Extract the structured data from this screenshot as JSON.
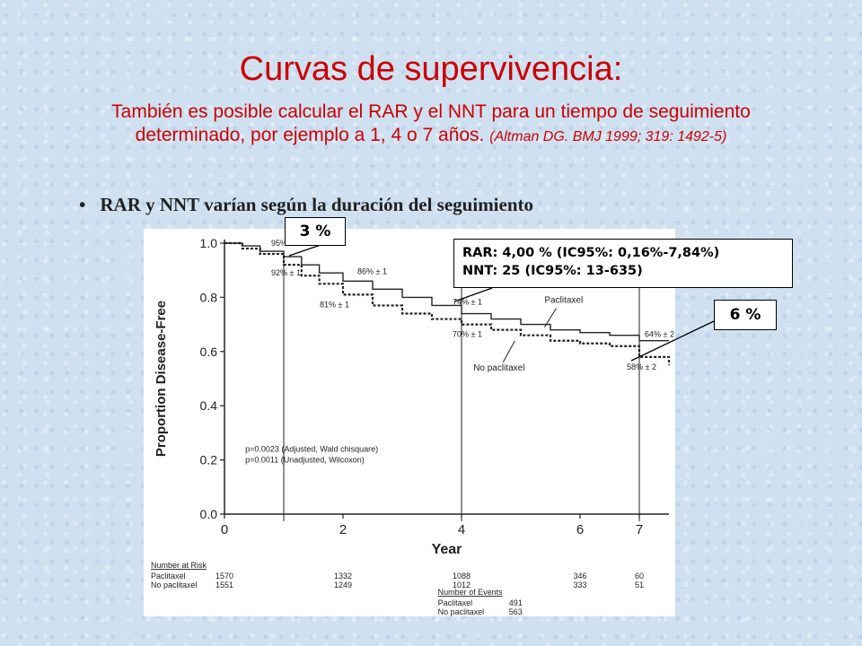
{
  "slide": {
    "title": "Curvas de supervivencia:",
    "subtitle": "También es posible calcular el RAR y el NNT para un tiempo de seguimiento determinado, por ejemplo a 1, 4 o 7 años.",
    "citation": "(Altman DG. BMJ 1999; 319: 1492-5)",
    "bullet": "RAR y NNT varían según la duración del seguimiento"
  },
  "callouts": {
    "three": "3 %",
    "six": "6 %",
    "rar": "RAR: 4,00 % (IC95%: 0,16%-7,84%)",
    "nnt": "NNT: 25 (IC95%: 13-635)"
  },
  "chart_data": {
    "type": "line",
    "xlabel": "Year",
    "ylabel": "Proportion Disease-Free",
    "xlim": [
      0,
      7.5
    ],
    "ylim": [
      0,
      1.0
    ],
    "xticks": [
      0,
      2,
      4,
      6,
      7
    ],
    "yticks": [
      "0.0",
      "0.2",
      "0.4",
      "0.6",
      "0.8",
      "1.0"
    ],
    "series": [
      {
        "name": "Paclitaxel",
        "style": "solid",
        "x": [
          0,
          0.3,
          0.6,
          1,
          1.3,
          1.6,
          2,
          2.5,
          3,
          3.5,
          4,
          4.5,
          5,
          5.5,
          6,
          6.5,
          7,
          7.5
        ],
        "y": [
          1.0,
          0.99,
          0.97,
          0.95,
          0.92,
          0.89,
          0.86,
          0.83,
          0.8,
          0.77,
          0.74,
          0.72,
          0.7,
          0.68,
          0.67,
          0.66,
          0.64,
          0.64
        ]
      },
      {
        "name": "No paclitaxel",
        "style": "dashed",
        "x": [
          0,
          0.3,
          0.6,
          1,
          1.3,
          1.6,
          2,
          2.5,
          3,
          3.5,
          4,
          4.5,
          5,
          5.5,
          6,
          6.5,
          7,
          7.5
        ],
        "y": [
          1.0,
          0.98,
          0.96,
          0.92,
          0.88,
          0.85,
          0.81,
          0.77,
          0.74,
          0.72,
          0.7,
          0.68,
          0.66,
          0.64,
          0.63,
          0.62,
          0.58,
          0.55
        ]
      }
    ],
    "annotations": [
      {
        "x": 1,
        "y": 0.95,
        "text": "95% ± 1"
      },
      {
        "x": 1,
        "y": 0.92,
        "text": "92% ± 1"
      },
      {
        "x": 2,
        "y": 0.86,
        "text": "86% ± 1"
      },
      {
        "x": 2,
        "y": 0.81,
        "text": "81% ± 1"
      },
      {
        "x": 4,
        "y": 0.74,
        "text": "74% ± 1"
      },
      {
        "x": 4,
        "y": 0.7,
        "text": "70% ± 1"
      },
      {
        "x": 7,
        "y": 0.64,
        "text": "64% ± 2"
      },
      {
        "x": 7,
        "y": 0.58,
        "text": "58% ± 2"
      }
    ],
    "series_labels": [
      "Paclitaxel",
      "No paclitaxel"
    ],
    "pvalues": [
      "p=0.0023 (Adjusted, Wald chisquare)",
      "p=0.0011 (Unadjusted, Wilcoxon)"
    ],
    "risk_table": {
      "title": "Number at Risk",
      "rows": [
        {
          "label": "Paclitaxel",
          "values": [
            "1570",
            "1332",
            "1088",
            "346",
            "60"
          ]
        },
        {
          "label": "No paclitaxel",
          "values": [
            "1551",
            "1249",
            "1012",
            "333",
            "51"
          ]
        }
      ]
    },
    "events_table": {
      "title": "Number of Events",
      "rows": [
        {
          "label": "Paclitaxel",
          "value": "491"
        },
        {
          "label": "No paclitaxel",
          "value": "563"
        }
      ]
    }
  }
}
